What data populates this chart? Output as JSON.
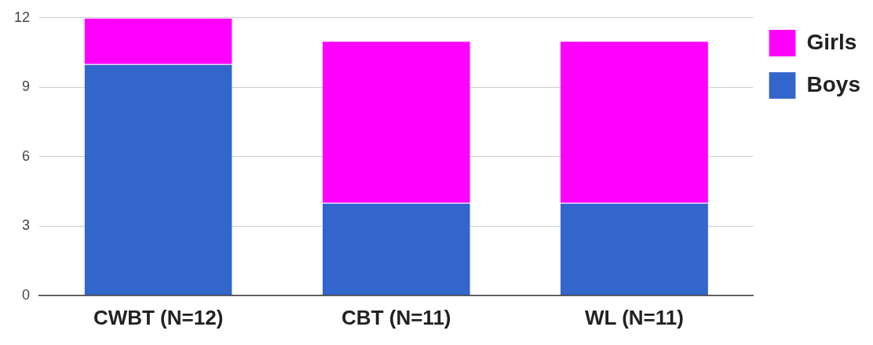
{
  "chart_data": {
    "type": "bar",
    "stacked": true,
    "categories": [
      "CWBT (N=12)",
      "CBT (N=11)",
      "WL (N=11)"
    ],
    "series": [
      {
        "name": "Boys",
        "color": "#3366cc",
        "values": [
          10,
          4,
          4
        ]
      },
      {
        "name": "Girls",
        "color": "#ff00ff",
        "values": [
          2,
          7,
          7
        ]
      }
    ],
    "ylim": [
      0,
      12
    ],
    "yticks": [
      0,
      3,
      6,
      9,
      12
    ],
    "grid": "y",
    "legend": "top right"
  }
}
